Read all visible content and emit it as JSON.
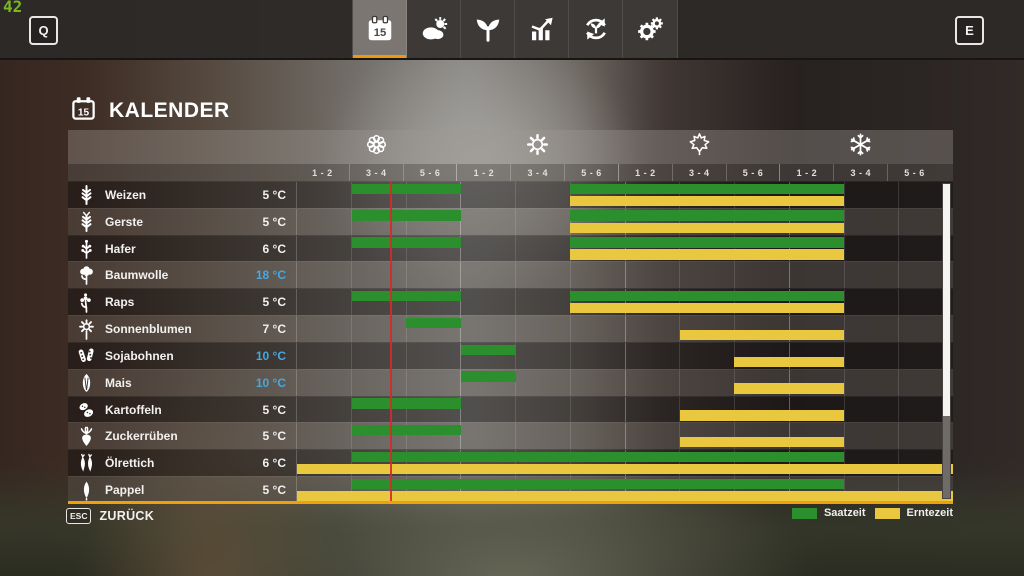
{
  "hud": {
    "fps": "42",
    "left_key": "Q",
    "right_key": "E"
  },
  "tabs": [
    {
      "name": "tab-calendar",
      "icon": "calendar-icon",
      "active": true
    },
    {
      "name": "tab-weather",
      "icon": "weather-icon",
      "active": false
    },
    {
      "name": "tab-crops",
      "icon": "plant-icon",
      "active": false
    },
    {
      "name": "tab-statistics",
      "icon": "stats-icon",
      "active": false
    },
    {
      "name": "tab-crop-rotation",
      "icon": "rotation-icon",
      "active": false
    },
    {
      "name": "tab-settings",
      "icon": "gear-icon",
      "active": false
    }
  ],
  "title": {
    "icon": "calendar-outline-icon",
    "text": "KALENDER"
  },
  "colors": {
    "sow": "#2c8f2e",
    "harvest": "#e9c73e",
    "accent_orange": "#f2a00a",
    "temp_blue": "#45a7e3",
    "marker_red": "#d42a2a",
    "fps_green": "#79b821"
  },
  "chart_data": {
    "type": "calendar-gantt",
    "columns_total": 12,
    "period_labels": [
      "1 - 2",
      "3 - 4",
      "5 - 6"
    ],
    "seasons": [
      {
        "name": "spring",
        "icon": "flower-icon"
      },
      {
        "name": "summer",
        "icon": "sun-icon"
      },
      {
        "name": "autumn",
        "icon": "maple-leaf-icon"
      },
      {
        "name": "winter",
        "icon": "snowflake-icon"
      }
    ],
    "current_date_marker_pct": 14.6,
    "crops": [
      {
        "name": "Weizen",
        "temp": "5 °C",
        "temp_cold": false,
        "icon": "wheat-icon",
        "sow": [
          [
            2,
            3
          ],
          [
            6,
            10
          ]
        ],
        "harvest": [
          [
            6,
            10
          ]
        ]
      },
      {
        "name": "Gerste",
        "temp": "5 °C",
        "temp_cold": false,
        "icon": "barley-icon",
        "sow": [
          [
            2,
            3
          ],
          [
            6,
            10
          ]
        ],
        "harvest": [
          [
            6,
            10
          ]
        ]
      },
      {
        "name": "Hafer",
        "temp": "6 °C",
        "temp_cold": false,
        "icon": "oat-icon",
        "sow": [
          [
            2,
            3
          ],
          [
            6,
            10
          ]
        ],
        "harvest": [
          [
            6,
            10
          ]
        ]
      },
      {
        "name": "Baumwolle",
        "temp": "18 °C",
        "temp_cold": true,
        "icon": "cotton-icon",
        "sow": [],
        "harvest": []
      },
      {
        "name": "Raps",
        "temp": "5 °C",
        "temp_cold": false,
        "icon": "canola-icon",
        "sow": [
          [
            2,
            3
          ],
          [
            6,
            10
          ]
        ],
        "harvest": [
          [
            6,
            10
          ]
        ]
      },
      {
        "name": "Sonnenblumen",
        "temp": "7 °C",
        "temp_cold": false,
        "icon": "sunflower-icon",
        "sow": [
          [
            3,
            3
          ]
        ],
        "harvest": [
          [
            8,
            10
          ]
        ]
      },
      {
        "name": "Sojabohnen",
        "temp": "10 °C",
        "temp_cold": true,
        "icon": "soybean-icon",
        "sow": [
          [
            4,
            4
          ]
        ],
        "harvest": [
          [
            9,
            10
          ]
        ]
      },
      {
        "name": "Mais",
        "temp": "10 °C",
        "temp_cold": true,
        "icon": "corn-icon",
        "sow": [
          [
            4,
            4
          ]
        ],
        "harvest": [
          [
            9,
            10
          ]
        ]
      },
      {
        "name": "Kartoffeln",
        "temp": "5 °C",
        "temp_cold": false,
        "icon": "potato-icon",
        "sow": [
          [
            2,
            3
          ]
        ],
        "harvest": [
          [
            8,
            10
          ]
        ]
      },
      {
        "name": "Zuckerrüben",
        "temp": "5 °C",
        "temp_cold": false,
        "icon": "sugar-beet-icon",
        "sow": [
          [
            2,
            3
          ]
        ],
        "harvest": [
          [
            8,
            10
          ]
        ]
      },
      {
        "name": "Ölrettich",
        "temp": "6 °C",
        "temp_cold": false,
        "icon": "oilseed-radish-icon",
        "sow": [
          [
            2,
            10
          ]
        ],
        "harvest": [
          [
            1,
            12
          ]
        ]
      },
      {
        "name": "Pappel",
        "temp": "5 °C",
        "temp_cold": false,
        "icon": "poplar-icon",
        "sow": [
          [
            2,
            10
          ]
        ],
        "harvest": [
          [
            1,
            12
          ]
        ]
      }
    ]
  },
  "legend": [
    {
      "label": "Saatzeit",
      "color_key": "sow"
    },
    {
      "label": "Erntezeit",
      "color_key": "harvest"
    }
  ],
  "back": {
    "key": "ESC",
    "label": "ZURÜCK"
  }
}
